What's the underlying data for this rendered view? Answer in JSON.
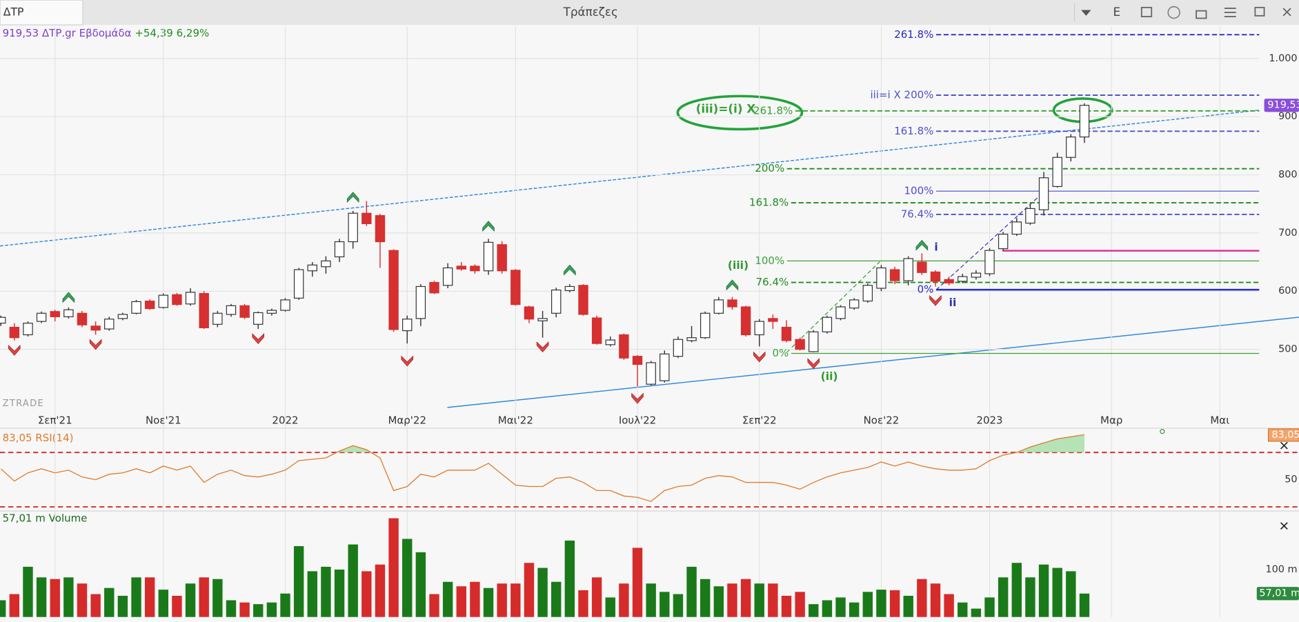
{
  "toolbar": {
    "symbol": "ΔΤΡ",
    "title": "Τράπεζες",
    "button": "E"
  },
  "chart_data": [
    {
      "type": "candlestick",
      "header": {
        "price": "919,53",
        "name": "ΔΤΡ.gr Εβδομάδα",
        "change": "+54,39 6,29%"
      },
      "watermark": "ZTRADE",
      "last_label": "919,53",
      "categories": [
        null,
        null,
        null,
        null,
        "Σεπ'21",
        null,
        null,
        null,
        null,
        null,
        null,
        null,
        "Νοε'21",
        null,
        null,
        null,
        null,
        null,
        null,
        null,
        null,
        "2022",
        null,
        null,
        null,
        null,
        null,
        null,
        null,
        null,
        "Μαρ'22",
        null,
        null,
        null,
        null,
        null,
        null,
        null,
        "Μαι'22",
        null,
        null,
        null,
        null,
        null,
        null,
        null,
        null,
        "Ιουλ'22",
        null,
        null,
        null,
        null,
        null,
        null,
        null,
        null,
        "Σεπ'22",
        null,
        null,
        null,
        null,
        null,
        null,
        null,
        null,
        "Νοε'22",
        null,
        null,
        null,
        null,
        null,
        null,
        null,
        "2023",
        null,
        null,
        null,
        null,
        null,
        null,
        null,
        null,
        "Μαρ",
        null,
        null,
        null,
        null,
        null,
        null,
        null,
        "Μαι",
        null,
        null
      ],
      "open": [
        545,
        538,
        525,
        548,
        565,
        556,
        562,
        540,
        535,
        553,
        562,
        583,
        572,
        594,
        578,
        596,
        543,
        560,
        575,
        543,
        562,
        567,
        588,
        635,
        642,
        659,
        685,
        734,
        730,
        670,
        532,
        553,
        615,
        610,
        643,
        643,
        635,
        680,
        636,
        573,
        549,
        562,
        601,
        610,
        554,
        508,
        525,
        488,
        440,
        446,
        488,
        515,
        520,
        562,
        585,
        573,
        525,
        553,
        538,
        517,
        496,
        530,
        553,
        571,
        583,
        605,
        637,
        618,
        650,
        633,
        620,
        617,
        624,
        630,
        673,
        698,
        717,
        740,
        780,
        830,
        865.14,
        null,
        null,
        null,
        null,
        null,
        null,
        null,
        null,
        null,
        null,
        null,
        null
      ],
      "high": [
        558,
        545,
        548,
        565,
        568,
        572,
        566,
        548,
        556,
        563,
        585,
        586,
        596,
        597,
        605,
        600,
        566,
        578,
        578,
        565,
        570,
        588,
        640,
        650,
        660,
        690,
        738,
        755,
        733,
        672,
        558,
        612,
        618,
        648,
        650,
        646,
        690,
        686,
        638,
        575,
        566,
        606,
        612,
        612,
        558,
        522,
        527,
        490,
        480,
        498,
        522,
        540,
        565,
        590,
        590,
        575,
        552,
        560,
        550,
        520,
        533,
        558,
        576,
        588,
        613,
        645,
        642,
        660,
        665,
        636,
        625,
        630,
        636,
        674,
        702,
        726,
        750,
        805,
        838,
        870,
        923,
        null,
        null,
        null,
        null,
        null,
        null,
        null,
        null,
        null,
        null,
        null,
        null
      ],
      "low": [
        540,
        515,
        522,
        545,
        548,
        553,
        538,
        525,
        532,
        550,
        560,
        568,
        570,
        575,
        575,
        535,
        538,
        556,
        552,
        535,
        558,
        565,
        585,
        625,
        630,
        650,
        673,
        712,
        640,
        530,
        510,
        540,
        595,
        605,
        635,
        630,
        628,
        630,
        575,
        545,
        520,
        555,
        598,
        558,
        508,
        505,
        482,
        436,
        438,
        443,
        485,
        512,
        518,
        560,
        568,
        522,
        505,
        535,
        512,
        498,
        495,
        527,
        550,
        568,
        580,
        600,
        612,
        610,
        628,
        608,
        610,
        614,
        620,
        626,
        670,
        695,
        714,
        730,
        778,
        823,
        855,
        null,
        null,
        null,
        null,
        null,
        null,
        null,
        null,
        null,
        null,
        null,
        null
      ],
      "close": [
        555,
        520,
        545,
        562,
        556,
        568,
        542,
        533,
        552,
        560,
        582,
        570,
        593,
        577,
        598,
        537,
        562,
        575,
        555,
        563,
        567,
        585,
        637,
        645,
        652,
        685,
        734,
        716,
        685,
        534,
        552,
        608,
        597,
        640,
        638,
        635,
        684,
        635,
        577,
        552,
        553,
        602,
        608,
        560,
        510,
        516,
        485,
        474,
        477,
        492,
        517,
        520,
        562,
        585,
        573,
        525,
        548,
        548,
        515,
        500,
        530,
        555,
        573,
        585,
        610,
        640,
        618,
        656,
        632,
        617,
        614,
        625,
        631,
        670,
        698,
        719,
        742,
        795,
        830,
        865.14,
        919.53,
        null,
        null,
        null,
        null,
        null,
        null,
        null,
        null,
        null,
        null,
        null,
        null
      ],
      "ylim": [
        400,
        1055
      ],
      "yticks": [
        500,
        600,
        700,
        800,
        900,
        {
          "value": 1000,
          "label": "1.000"
        }
      ],
      "up_color": "#ffffff",
      "down_color": "#d63031",
      "grid": true,
      "fib_levels": [
        {
          "label": "261.8%",
          "value": 1041,
          "color": "#2929c4",
          "dashed": true
        },
        {
          "label": "iii=i X 200%",
          "value": 937,
          "color": "#5050cc",
          "dashed": true
        },
        {
          "prefix": "(iii)=(i) X",
          "label": "261.8%",
          "value": 910,
          "color": "#33a033",
          "dashed": true
        },
        {
          "label": "161.8%",
          "value": 875,
          "color": "#5050cc",
          "dashed": true
        },
        {
          "label": "200%",
          "value": 810.5,
          "color": "#1e8c1e",
          "dashed": true
        },
        {
          "label": "100%",
          "value": 772,
          "color": "#4a4ad0",
          "dashed": false
        },
        {
          "label": "161.8%",
          "value": 752,
          "color": "#1e8c1e",
          "dashed": true
        },
        {
          "label": "76.4%",
          "value": 732,
          "color": "#5050cc",
          "dashed": true
        },
        {
          "value": 669.5,
          "color": "#e0309a",
          "dashed": false
        },
        {
          "label": "100%",
          "value": 652,
          "color": "#3aa03a",
          "dashed": false
        },
        {
          "label": "76.4%",
          "value": 615,
          "color": "#1e8c1e",
          "dashed": true
        },
        {
          "label": "0%",
          "value": 602.5,
          "color": "#2929c4",
          "dashed": false
        },
        {
          "label": "0%",
          "value": 493,
          "color": "#3aa03a",
          "dashed": false
        }
      ],
      "wave_labels": [
        "(iii)",
        "(ii)",
        "i",
        "ii"
      ]
    },
    {
      "type": "line",
      "header": "83,05 RSI(14)",
      "last_label": "83,05",
      "color": "#e07b2a",
      "values": [
        58,
        49,
        55,
        58,
        55,
        57,
        52,
        50,
        54,
        55,
        58,
        55,
        60,
        57,
        60,
        48,
        54,
        57,
        53,
        52,
        54,
        57,
        64,
        65,
        66,
        71,
        75,
        72,
        66,
        42,
        45,
        54,
        52,
        57,
        57,
        57,
        62,
        54,
        46,
        45,
        45,
        51,
        52,
        48,
        42,
        42,
        38,
        37,
        34,
        42,
        45,
        46,
        51,
        53,
        52,
        48,
        48,
        48,
        46,
        43,
        48,
        52,
        55,
        57,
        59,
        63,
        60,
        63,
        60,
        58,
        57,
        57,
        58,
        64,
        68,
        70,
        74,
        77,
        80,
        81.5,
        83.05
      ],
      "ylim": [
        27,
        86
      ],
      "yticks": [
        50
      ],
      "levels": [
        30,
        70
      ],
      "level_color": "#d62b2b"
    },
    {
      "type": "bar",
      "header": "57,01 m Volume",
      "last_label": "57,01 m",
      "up_color": "#1a7a1a",
      "down_color": "#d62b2b",
      "values": [
        45,
        56,
        105,
        86,
        83,
        86,
        75,
        56,
        67,
        53,
        86,
        86,
        64,
        53,
        75,
        86,
        83,
        45,
        41,
        38,
        41,
        57,
        142,
        97,
        105,
        100,
        145,
        97,
        109,
        192,
        155,
        131,
        56,
        78,
        70,
        78,
        67,
        75,
        75,
        112,
        103,
        78,
        152,
        63,
        86,
        50,
        75,
        139,
        75,
        60,
        56,
        105,
        83,
        70,
        75,
        83,
        75,
        75,
        53,
        60,
        38,
        45,
        50,
        41,
        60,
        64,
        63,
        53,
        83,
        75,
        56,
        41,
        30,
        50,
        86,
        112,
        86,
        109,
        103,
        97,
        57.01
      ],
      "ylim": [
        15,
        205
      ],
      "yticks": [
        {
          "value": 100,
          "label": "100 m"
        }
      ]
    }
  ]
}
